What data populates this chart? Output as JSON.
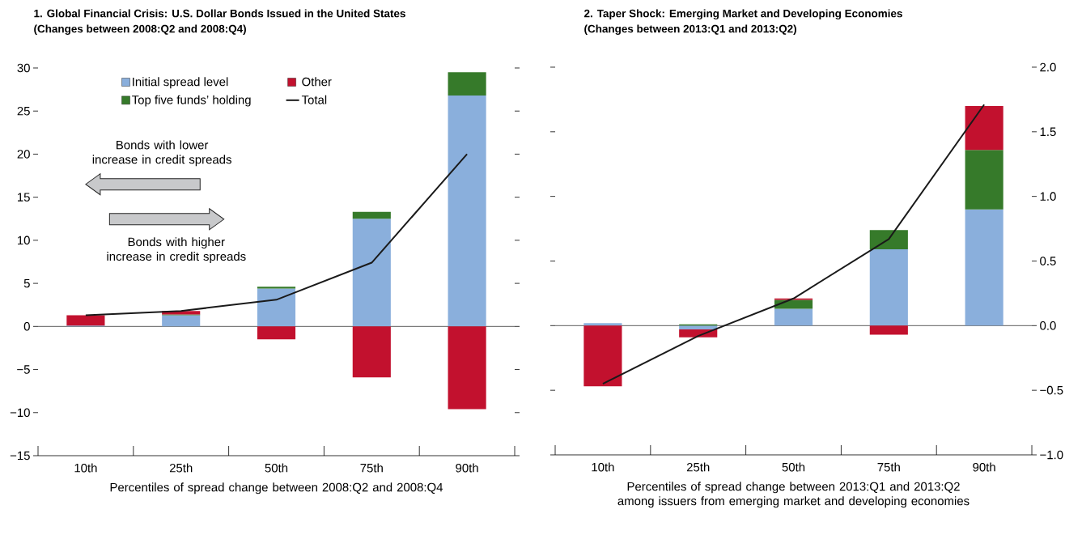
{
  "chart_data": [
    {
      "type": "bar",
      "stacked": true,
      "title": "1. Global Financial Crisis: U.S. Dollar Bonds Issued in the United States",
      "subtitle": "(Changes between 2008:Q2 and 2008:Q4)",
      "xlabel": "Percentiles of spread change between 2008:Q2 and 2008:Q4",
      "categories": [
        "10th",
        "25th",
        "50th",
        "75th",
        "90th"
      ],
      "series": [
        {
          "name": "Initial spread level",
          "color": "#8aafdc",
          "values": [
            0.1,
            1.3,
            4.4,
            12.5,
            26.8
          ]
        },
        {
          "name": "Top five funds’ holding",
          "color": "#367a2a",
          "values": [
            0,
            0.1,
            0.2,
            0.8,
            2.7
          ]
        },
        {
          "name": "Other",
          "color": "#c2112e",
          "values": [
            1.2,
            0.4,
            -1.5,
            -5.9,
            -9.6
          ]
        },
        {
          "name": "Total",
          "type": "line",
          "color": "#1a1a1a",
          "values": [
            1.3,
            1.8,
            3.1,
            7.4,
            20.0
          ]
        }
      ],
      "ylim": [
        -15,
        30
      ],
      "yticks": [
        {
          "value": -15,
          "label": "−15"
        },
        {
          "value": -10,
          "label": "−10"
        },
        {
          "value": -5,
          "label": "−5"
        },
        0,
        5,
        10,
        15,
        20,
        25,
        30
      ],
      "legend": "top left",
      "ref_lines": [
        {
          "axis": "y",
          "value": 0,
          "color": "#333333"
        }
      ],
      "annotations": [
        "Bonds with lower increase in credit spreads",
        "Bonds with higher increase in credit spreads"
      ]
    },
    {
      "type": "bar",
      "stacked": true,
      "title": "2. Taper Shock: Emerging Market and Developing Economies",
      "subtitle": "(Changes between 2013:Q1 and 2013:Q2)",
      "xlabel": "Percentiles of spread change between 2013:Q1 and 2013:Q2 among issuers from emerging market and developing economies",
      "categories": [
        "10th",
        "25th",
        "50th",
        "75th",
        "90th"
      ],
      "series": [
        {
          "color": "#8aafdc",
          "values": [
            0.02,
            -0.03,
            0.13,
            0.59,
            0.9
          ]
        },
        {
          "color": "#367a2a",
          "values": [
            0,
            0.01,
            0.07,
            0.15,
            0.46
          ]
        },
        {
          "color": "#c2112e",
          "values": [
            -0.47,
            -0.06,
            0.01,
            -0.07,
            0.34
          ]
        },
        {
          "type": "line",
          "color": "#1a1a1a",
          "values": [
            -0.45,
            -0.08,
            0.21,
            0.67,
            1.71
          ]
        }
      ],
      "ylim": [
        -1,
        2
      ],
      "yticks": [
        {
          "value": -1,
          "label": "−1.0"
        },
        {
          "value": -0.5,
          "label": "−0.5"
        },
        {
          "value": 0,
          "label": "0.0"
        },
        0.5,
        {
          "value": 1,
          "label": "1.0"
        },
        1.5,
        {
          "value": 2,
          "label": "2.0"
        }
      ],
      "ref_lines": [
        {
          "axis": "y",
          "value": 0,
          "color": "#333333"
        }
      ]
    }
  ]
}
